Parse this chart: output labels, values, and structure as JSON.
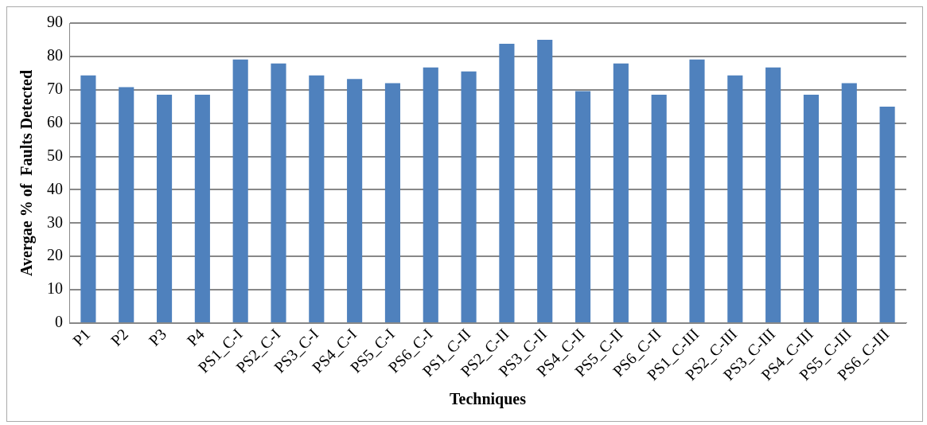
{
  "chart_data": {
    "type": "bar",
    "xlabel": "Techniques",
    "ylabel": "Avergae % of  Faults Detected",
    "categories": [
      "P1",
      "P2",
      "P3",
      "P4",
      "PS1_C-I",
      "PS2_C-I",
      "PS3_C-I",
      "PS4_C-I",
      "PS5_C-I",
      "PS6_C-I",
      "PS1_C-II",
      "PS2_C-II",
      "PS3_C-II",
      "PS4_C-II",
      "PS5_C-II",
      "PS6_C-II",
      "PS1_C-III",
      "PS2_C-III",
      "PS3_C-III",
      "PS4_C-III",
      "PS5_C-III",
      "PS6_C-III"
    ],
    "values": [
      74.3,
      70.8,
      68.5,
      68.5,
      79.1,
      77.9,
      74.3,
      73.2,
      72.0,
      76.7,
      75.5,
      83.8,
      85.0,
      69.6,
      77.9,
      68.5,
      79.1,
      74.3,
      76.7,
      68.5,
      72.0,
      64.9
    ],
    "color": "#4f81bd",
    "ylim": [
      0,
      90
    ],
    "yticks": [
      0,
      10,
      20,
      30,
      40,
      50,
      60,
      70,
      80,
      90
    ],
    "grid": "y"
  }
}
